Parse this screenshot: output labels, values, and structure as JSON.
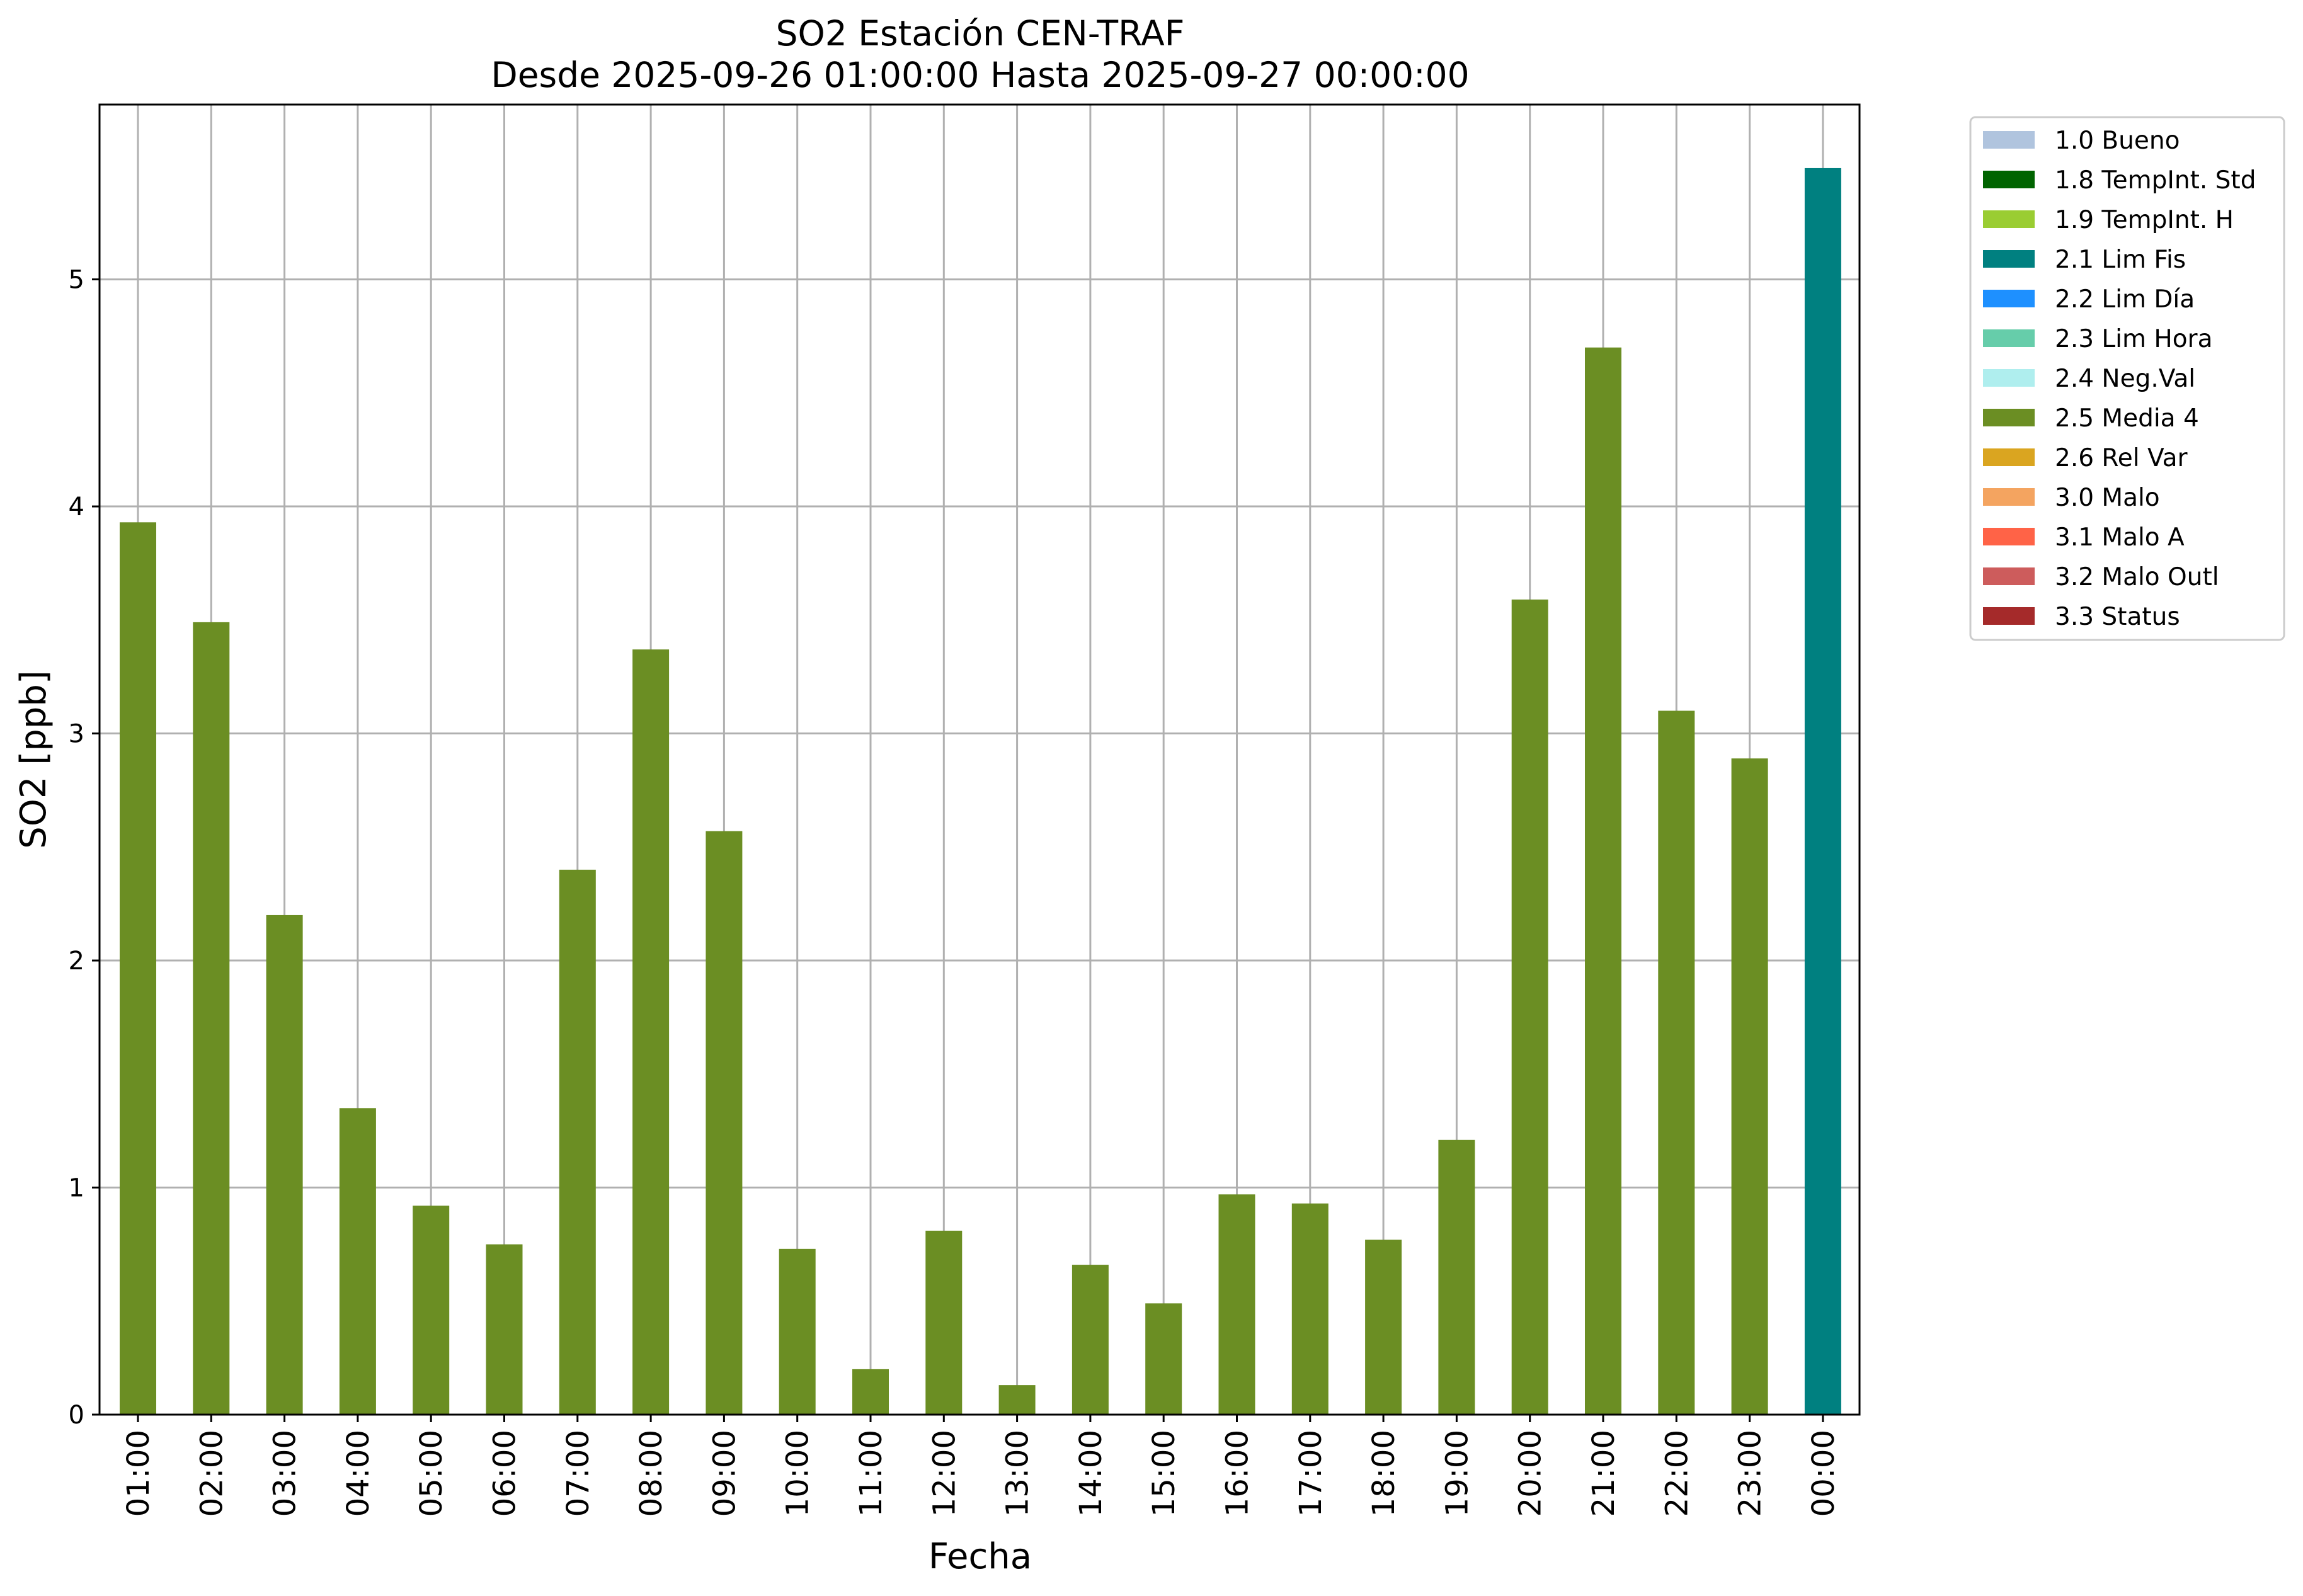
{
  "chart_data": {
    "type": "bar",
    "title": "SO2 Estación CEN-TRAF",
    "subtitle": "Desde 2025-09-26 01:00:00 Hasta 2025-09-27 00:00:00",
    "xlabel": "Fecha",
    "ylabel": "SO2 [ppb]",
    "ylim": [
      0,
      5.77
    ],
    "yticks": [
      0,
      1,
      2,
      3,
      4,
      5
    ],
    "grid": true,
    "legend_position": "outside-top-right",
    "categories": [
      "01:00",
      "02:00",
      "03:00",
      "04:00",
      "05:00",
      "06:00",
      "07:00",
      "08:00",
      "09:00",
      "10:00",
      "11:00",
      "12:00",
      "13:00",
      "14:00",
      "15:00",
      "16:00",
      "17:00",
      "18:00",
      "19:00",
      "20:00",
      "21:00",
      "22:00",
      "23:00",
      "00:00"
    ],
    "values": [
      3.93,
      3.49,
      2.2,
      1.35,
      0.92,
      0.75,
      2.4,
      3.37,
      2.57,
      0.73,
      0.2,
      0.81,
      0.13,
      0.66,
      0.49,
      0.97,
      0.93,
      0.77,
      1.21,
      3.59,
      4.7,
      3.1,
      2.89,
      5.49
    ],
    "flags": [
      "2.5 Media 4",
      "2.5 Media 4",
      "2.5 Media 4",
      "2.5 Media 4",
      "2.5 Media 4",
      "2.5 Media 4",
      "2.5 Media 4",
      "2.5 Media 4",
      "2.5 Media 4",
      "2.5 Media 4",
      "2.5 Media 4",
      "2.5 Media 4",
      "2.5 Media 4",
      "2.5 Media 4",
      "2.5 Media 4",
      "2.5 Media 4",
      "2.5 Media 4",
      "2.5 Media 4",
      "2.5 Media 4",
      "2.5 Media 4",
      "2.5 Media 4",
      "2.5 Media 4",
      "2.5 Media 4",
      "2.1 Lim Fis"
    ],
    "legend": [
      {
        "label": "1.0 Bueno",
        "color": "#b0c4de"
      },
      {
        "label": "1.8 TempInt. Std",
        "color": "#006400"
      },
      {
        "label": "1.9 TempInt. H",
        "color": "#9acd32"
      },
      {
        "label": "2.1 Lim Fis",
        "color": "#008080"
      },
      {
        "label": "2.2 Lim Día",
        "color": "#1e90ff"
      },
      {
        "label": "2.3 Lim Hora",
        "color": "#66cdaa"
      },
      {
        "label": "2.4 Neg.Val",
        "color": "#afeeee"
      },
      {
        "label": "2.5 Media 4",
        "color": "#6b8e23"
      },
      {
        "label": "2.6 Rel Var",
        "color": "#daa520"
      },
      {
        "label": "3.0 Malo",
        "color": "#f4a460"
      },
      {
        "label": "3.1 Malo A",
        "color": "#ff6347"
      },
      {
        "label": "3.2 Malo Outl",
        "color": "#cd5c5c"
      },
      {
        "label": "3.3 Status",
        "color": "#a52a2a"
      }
    ]
  }
}
